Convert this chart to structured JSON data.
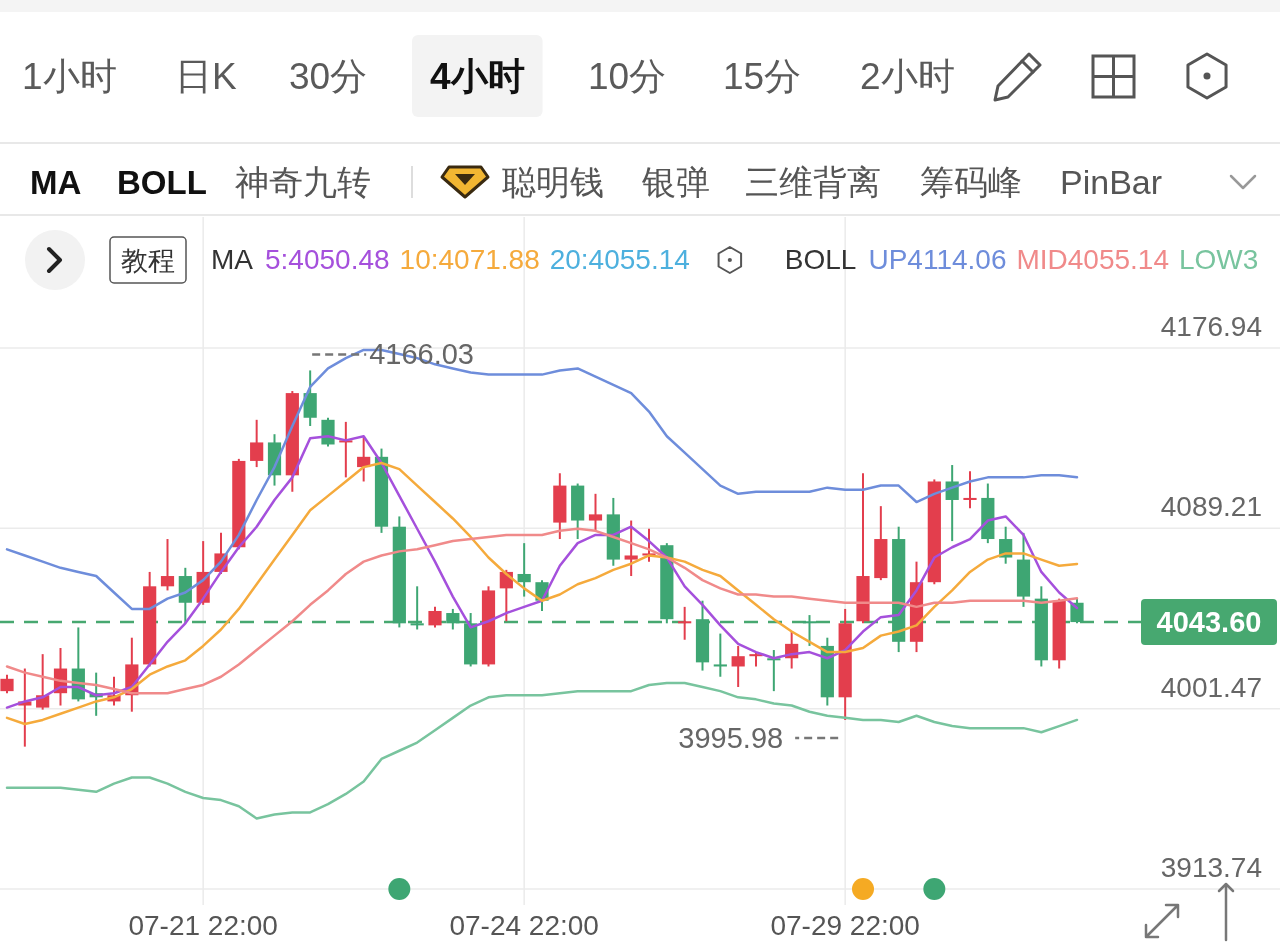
{
  "chart_data": {
    "type": "candlestick",
    "categories": [
      null,
      null,
      null,
      null,
      null,
      null,
      null,
      null,
      null,
      null,
      null,
      "07-21 22:00",
      null,
      null,
      null,
      null,
      null,
      null,
      null,
      null,
      null,
      null,
      null,
      null,
      null,
      null,
      null,
      null,
      null,
      "07-24 22:00",
      null,
      null,
      null,
      null,
      null,
      null,
      null,
      null,
      null,
      null,
      null,
      null,
      null,
      null,
      null,
      null,
      null,
      "07-29 22:00",
      null,
      null,
      null,
      null,
      null,
      null,
      null,
      null,
      null,
      null,
      null,
      null,
      null
    ],
    "ohlc": [
      [
        4010,
        4018,
        4009,
        4016
      ],
      [
        4003,
        4021,
        3983,
        4005
      ],
      [
        4002,
        4028,
        4001,
        4008
      ],
      [
        4009,
        4031,
        4003,
        4021
      ],
      [
        4021,
        4041,
        4005,
        4006
      ],
      [
        4009,
        4019,
        3998,
        4007
      ],
      [
        4005,
        4017,
        4003,
        4008
      ],
      [
        4008,
        4036,
        4000,
        4023
      ],
      [
        4023,
        4068,
        4022,
        4061
      ],
      [
        4061,
        4084,
        4059,
        4066
      ],
      [
        4066,
        4070,
        4043,
        4053
      ],
      [
        4053,
        4083,
        4052,
        4068
      ],
      [
        4068,
        4087,
        4067,
        4077
      ],
      [
        4080,
        4123,
        4079,
        4122
      ],
      [
        4122,
        4142,
        4119,
        4131
      ],
      [
        4131,
        4135,
        4110,
        4115
      ],
      [
        4115,
        4156,
        4107,
        4155
      ],
      [
        4155,
        4166.03,
        4139,
        4143
      ],
      [
        4142,
        4143,
        4129,
        4130
      ],
      [
        4131,
        4141,
        4114,
        4132
      ],
      [
        4119,
        4134,
        4112,
        4124
      ],
      [
        4124,
        4128,
        4087,
        4090
      ],
      [
        4090,
        4095,
        4041,
        4043
      ],
      [
        4043,
        4061,
        4040,
        4042
      ],
      [
        4042,
        4051,
        4041,
        4049
      ],
      [
        4048,
        4050,
        4040,
        4043
      ],
      [
        4043,
        4048,
        4022,
        4023
      ],
      [
        4023,
        4061,
        4022,
        4059
      ],
      [
        4060,
        4069,
        4044,
        4068
      ],
      [
        4067,
        4082,
        4056,
        4063
      ],
      [
        4063,
        4064,
        4049,
        4054
      ],
      [
        4092,
        4116,
        4084,
        4110
      ],
      [
        4110,
        4111,
        4084,
        4093
      ],
      [
        4093,
        4106,
        4088,
        4096
      ],
      [
        4096,
        4104,
        4071,
        4074
      ],
      [
        4074,
        4093,
        4066,
        4076
      ],
      [
        4076,
        4089,
        4073,
        4077
      ],
      [
        4081,
        4082,
        4043,
        4045
      ],
      [
        4043,
        4051,
        4035,
        4044
      ],
      [
        4045,
        4054,
        4020,
        4024
      ],
      [
        4023,
        4038,
        4017,
        4022
      ],
      [
        4022,
        4032,
        4012,
        4027
      ],
      [
        4027,
        4029,
        4022,
        4028
      ],
      [
        4026,
        4030,
        4010,
        4025
      ],
      [
        4026,
        4039,
        4021,
        4033
      ],
      [
        4044,
        4047,
        4032,
        4043
      ],
      [
        4032,
        4036,
        4003,
        4007
      ],
      [
        4007,
        4050,
        3995.98,
        4043
      ],
      [
        4044,
        4116,
        4043,
        4066
      ],
      [
        4065,
        4100,
        4064,
        4084
      ],
      [
        4084,
        4090,
        4029,
        4034
      ],
      [
        4034,
        4073,
        4029,
        4063
      ],
      [
        4063,
        4113,
        4062,
        4112
      ],
      [
        4112,
        4120,
        4083,
        4103
      ],
      [
        4103,
        4117,
        4099,
        4104
      ],
      [
        4104,
        4111,
        4082,
        4084
      ],
      [
        4084,
        4090,
        4072,
        4075
      ],
      [
        4074,
        4087,
        4051,
        4056
      ],
      [
        4055,
        4061,
        4022,
        4025
      ],
      [
        4025,
        4055,
        4021,
        4054
      ],
      [
        4053,
        4055,
        4043,
        4043.6
      ]
    ],
    "colors": [
      "#e33e4d",
      "#e33e4d",
      "#e33e4d",
      "#e33e4d",
      "#3ea673",
      "#3ea673",
      "#e33e4d",
      "#e33e4d",
      "#e33e4d",
      "#e33e4d",
      "#3ea673",
      "#e33e4d",
      "#e33e4d",
      "#e33e4d",
      "#e33e4d",
      "#3ea673",
      "#e33e4d",
      "#3ea673",
      "#3ea673",
      "#e33e4d",
      "#e33e4d",
      "#3ea673",
      "#3ea673",
      "#3ea673",
      "#e33e4d",
      "#3ea673",
      "#3ea673",
      "#e33e4d",
      "#e33e4d",
      "#3ea673",
      "#3ea673",
      "#e33e4d",
      "#3ea673",
      "#e33e4d",
      "#3ea673",
      "#e33e4d",
      "#e33e4d",
      "#3ea673",
      "#e33e4d",
      "#3ea673",
      "#3ea673",
      "#e33e4d",
      "#e33e4d",
      "#3ea673",
      "#e33e4d",
      "#3ea673",
      "#3ea673",
      "#e33e4d",
      "#e33e4d",
      "#e33e4d",
      "#3ea673",
      "#e33e4d",
      "#e33e4d",
      "#3ea673",
      "#e33e4d",
      "#3ea673",
      "#3ea673",
      "#3ea673",
      "#3ea673",
      "#e33e4d",
      "#3ea673"
    ],
    "series": [
      {
        "name": "5:4050.48",
        "type": "line",
        "color": "#a550dc",
        "values": [
          4002,
          4005,
          4007,
          4012,
          4012,
          4008,
          4009,
          4012,
          4023,
          4034,
          4043,
          4055,
          4068,
          4080,
          4090,
          4103,
          4114,
          4133,
          4134,
          4132,
          4134,
          4121,
          4105,
          4089,
          4073,
          4056,
          4041,
          4044,
          4048,
          4051,
          4054,
          4071,
          4082,
          4086,
          4086,
          4090,
          4083,
          4075,
          4061,
          4052,
          4042,
          4033,
          4029,
          4026,
          4028,
          4029,
          4026,
          4030,
          4039,
          4046,
          4047,
          4059,
          4075,
          4080,
          4084,
          4093,
          4095,
          4086,
          4068,
          4058,
          4050.48
        ]
      },
      {
        "name": "10:4071.88",
        "type": "line",
        "color": "#f5aa3c",
        "values": [
          3997,
          3994,
          3996,
          3999,
          4002,
          4005,
          4007,
          4011,
          4018,
          4022,
          4025,
          4032,
          4040,
          4050,
          4062,
          4074,
          4086,
          4098,
          4105,
          4112,
          4119,
          4121,
          4118,
          4110,
          4102,
          4094,
          4085,
          4075,
          4067,
          4060,
          4054,
          4057,
          4062,
          4065,
          4069,
          4072,
          4076,
          4075,
          4073,
          4069,
          4066,
          4059,
          4052,
          4045,
          4039,
          4034,
          4029,
          4029,
          4031,
          4037,
          4039,
          4042,
          4051,
          4059,
          4068,
          4074,
          4077,
          4077,
          4074,
          4071,
          4071.88
        ]
      },
      {
        "name": "UP4114.06",
        "type": "line",
        "color": "#6e8ddb",
        "values": [
          4079,
          4076,
          4073,
          4070,
          4068,
          4066,
          4058,
          4050,
          4050,
          4055,
          4058,
          4064,
          4073,
          4086,
          4103,
          4119,
          4139,
          4158,
          4167,
          4172,
          4176,
          4176,
          4174,
          4172,
          4169,
          4167,
          4165,
          4164,
          4164,
          4164,
          4164,
          4166,
          4167,
          4163,
          4159,
          4155,
          4146,
          4134,
          4126,
          4118,
          4110,
          4106,
          4107,
          4107,
          4107,
          4107,
          4109,
          4108,
          4108,
          4110,
          4110,
          4102,
          4106,
          4109,
          4112,
          4114,
          4114,
          4114,
          4115,
          4115,
          4114.06
        ]
      },
      {
        "name": "MID4055.14",
        "type": "line",
        "color": "#f08a8a",
        "values": [
          4022,
          4019,
          4017,
          4015,
          4014,
          4013,
          4011,
          4009,
          4009,
          4009,
          4011,
          4013,
          4017,
          4023,
          4030,
          4037,
          4044,
          4052,
          4059,
          4067,
          4073,
          4076,
          4078,
          4079,
          4081,
          4083,
          4084,
          4085,
          4086,
          4086,
          4086,
          4088,
          4089,
          4088,
          4085,
          4082,
          4079,
          4075,
          4070,
          4064,
          4060,
          4057,
          4057,
          4056,
          4056,
          4055,
          4054,
          4053,
          4053,
          4053,
          4053,
          4051,
          4053,
          4053,
          4054,
          4054,
          4054,
          4054,
          4053,
          4054,
          4055.14
        ]
      },
      {
        "name": "LOW3",
        "type": "line",
        "color": "#78c49e",
        "values": [
          3963,
          3963,
          3963,
          3963,
          3962,
          3961,
          3965,
          3968,
          3968,
          3965,
          3961,
          3958,
          3957,
          3954,
          3948,
          3950,
          3951,
          3951,
          3955,
          3960,
          3966,
          3977,
          3981,
          3985,
          3991,
          3997,
          4003,
          4007,
          4008,
          4008,
          4008,
          4009,
          4010,
          4010,
          4010,
          4010,
          4013,
          4014,
          4014,
          4012,
          4010,
          4007,
          4006,
          4004,
          4003,
          4000,
          3998,
          3997,
          3996,
          3996,
          3995,
          3998,
          3995,
          3993,
          3992,
          3992,
          3992,
          3992,
          3990,
          3993,
          3996
        ]
      }
    ],
    "ylim": [
      3913.74,
      4176.94
    ],
    "yticks": [
      3913.74,
      4001.47,
      4089.21,
      4176.94
    ],
    "grid": true,
    "legend": "top",
    "ref_lines": [
      {
        "axis": "y",
        "value": 4043.6,
        "label": "4043.60",
        "color": "#47a870",
        "line_style": "dashed"
      }
    ],
    "annotations": [
      "1小时",
      "日K",
      "30分",
      "4小时",
      "10分",
      "15分",
      "2小时",
      "MA",
      "BOLL",
      "神奇九转",
      "聪明钱",
      "银弹",
      "三维背离",
      "筹码峰",
      "PinBar",
      "教程",
      "MA",
      "BOLL",
      "20:4055.14",
      "4166.03",
      "3995.98"
    ]
  }
}
